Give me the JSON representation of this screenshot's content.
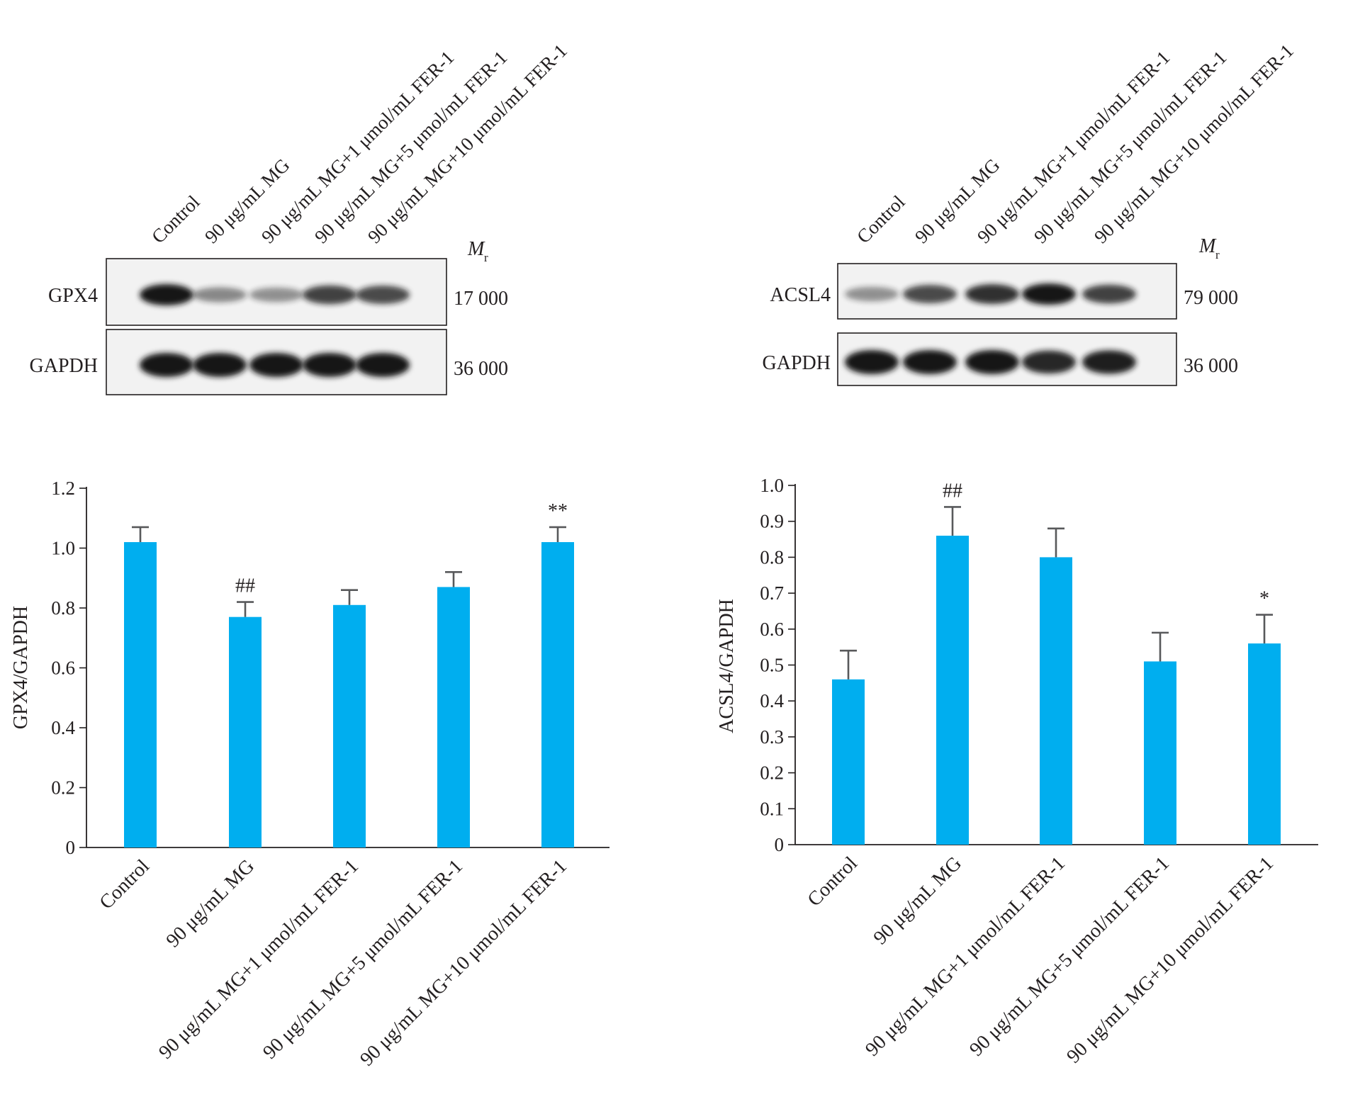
{
  "colors": {
    "bar": "#00aeef",
    "axis": "#231f20",
    "error_bar": "#58595b",
    "blot_bg": "#f2f2f2",
    "band": "#121212"
  },
  "lane_labels": [
    "Control",
    "90 μg/mL MG",
    "90 μg/mL MG+1 μmol/mL FER-1",
    "90 μg/mL MG+5 μmol/mL FER-1",
    "90 μg/mL MG+10 μmol/mL FER-1"
  ],
  "mr_label": "M",
  "mr_sub": "r",
  "blots": [
    {
      "rows": [
        {
          "label": "GPX4",
          "mw": "17 000",
          "band_intensity": [
            1.0,
            0.35,
            0.3,
            0.75,
            0.7
          ]
        },
        {
          "label": "GAPDH",
          "mw": "36 000",
          "band_intensity": [
            1.0,
            1.0,
            1.0,
            1.0,
            1.0
          ]
        }
      ]
    },
    {
      "rows": [
        {
          "label": "ACSL4",
          "mw": "79 000",
          "band_intensity": [
            0.3,
            0.7,
            0.85,
            1.0,
            0.75
          ]
        },
        {
          "label": "GAPDH",
          "mw": "36 000",
          "band_intensity": [
            1.0,
            1.0,
            1.0,
            0.9,
            0.95
          ]
        }
      ]
    }
  ],
  "chart_data": [
    {
      "type": "bar",
      "categories": [
        "Control",
        "90 μg/mL MG",
        "90 μg/mL MG+1 μmol/mL FER-1",
        "90 μg/mL MG+5 μmol/mL FER-1",
        "90 μg/mL MG+10 μmol/mL FER-1"
      ],
      "values": [
        1.02,
        0.77,
        0.81,
        0.87,
        1.02
      ],
      "errors": [
        0.05,
        0.05,
        0.05,
        0.05,
        0.05
      ],
      "annotations": [
        "",
        "##",
        "",
        "",
        "**"
      ],
      "ylabel": "GPX4/GAPDH",
      "ylim": [
        0,
        1.2
      ],
      "yticks": [
        0,
        0.2,
        0.4,
        0.6,
        0.8,
        1.0,
        1.2
      ],
      "ytick_labels": [
        "0",
        "0.2",
        "0.4",
        "0.6",
        "0.8",
        "1.0",
        "1.2"
      ],
      "grid": false
    },
    {
      "type": "bar",
      "categories": [
        "Control",
        "90 μg/mL MG",
        "90 μg/mL MG+1 μmol/mL FER-1",
        "90 μg/mL MG+5 μmol/mL FER-1",
        "90 μg/mL MG+10 μmol/mL FER-1"
      ],
      "values": [
        0.46,
        0.86,
        0.8,
        0.51,
        0.56
      ],
      "errors": [
        0.08,
        0.08,
        0.08,
        0.08,
        0.08
      ],
      "annotations": [
        "",
        "##",
        "",
        "",
        "*"
      ],
      "ylabel": "ACSL4/GAPDH",
      "ylim": [
        0,
        1.0
      ],
      "yticks": [
        0,
        0.1,
        0.2,
        0.3,
        0.4,
        0.5,
        0.6,
        0.7,
        0.8,
        0.9,
        1.0
      ],
      "ytick_labels": [
        "0",
        "0.1",
        "0.2",
        "0.3",
        "0.4",
        "0.5",
        "0.6",
        "0.7",
        "0.8",
        "0.9",
        "1.0"
      ],
      "grid": false
    }
  ]
}
